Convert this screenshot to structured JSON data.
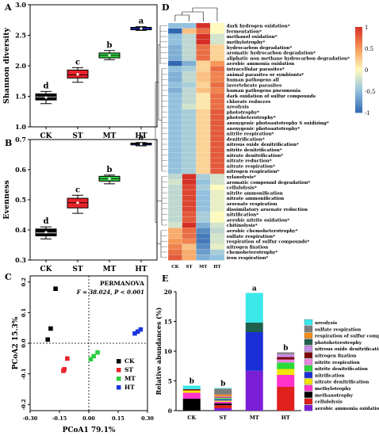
{
  "colors": {
    "box": "#000000",
    "st": "#e8232a",
    "mt": "#2ecc40",
    "ht": "#1a35e0"
  },
  "chart_data": [
    {
      "panel": "A",
      "type": "box",
      "categories": [
        "CK",
        "ST",
        "MT",
        "HT"
      ],
      "ylabel": "Shannon diversity",
      "ylim": [
        1.0,
        3.0
      ],
      "yticks": [
        "1.0",
        "1.5",
        "2.0",
        "2.5",
        "3.0"
      ],
      "boxes": [
        {
          "min": 1.38,
          "q1": 1.44,
          "median": 1.49,
          "q3": 1.54,
          "max": 1.58,
          "mean": 1.48,
          "letter": "d"
        },
        {
          "min": 1.73,
          "q1": 1.8,
          "median": 1.85,
          "q3": 1.93,
          "max": 1.97,
          "mean": 1.86,
          "letter": "c"
        },
        {
          "min": 2.1,
          "q1": 2.13,
          "median": 2.17,
          "q3": 2.21,
          "max": 2.25,
          "mean": 2.17,
          "letter": "b"
        },
        {
          "min": 2.58,
          "q1": 2.59,
          "median": 2.61,
          "q3": 2.63,
          "max": 2.64,
          "mean": 2.61,
          "letter": "a"
        }
      ]
    },
    {
      "panel": "B",
      "type": "box",
      "categories": [
        "CK",
        "ST",
        "MT",
        "HT"
      ],
      "ylabel": "Evenness",
      "ylim": [
        0.3,
        0.7
      ],
      "yticks": [
        "0.3",
        "0.4",
        "0.5",
        "0.6",
        "0.7"
      ],
      "boxes": [
        {
          "min": 0.37,
          "q1": 0.38,
          "median": 0.39,
          "q3": 0.403,
          "max": 0.41,
          "mean": 0.392,
          "letter": "d"
        },
        {
          "min": 0.455,
          "q1": 0.473,
          "median": 0.49,
          "q3": 0.505,
          "max": 0.515,
          "mean": 0.49,
          "letter": "c"
        },
        {
          "min": 0.553,
          "q1": 0.562,
          "median": 0.57,
          "q3": 0.578,
          "max": 0.582,
          "mean": 0.57,
          "letter": "b"
        },
        {
          "min": 0.679,
          "q1": 0.682,
          "median": 0.685,
          "q3": 0.688,
          "max": 0.69,
          "mean": 0.685,
          "letter": "a"
        }
      ]
    },
    {
      "panel": "C",
      "type": "scatter",
      "xlabel": "PCoA1 79.1%",
      "ylabel": "PCoA2 15.3%",
      "xlim": [
        -0.3,
        0.3
      ],
      "ylim": [
        -0.22,
        0.22
      ],
      "xticks": [
        {
          "v": -0.3,
          "l": "-0.30"
        },
        {
          "v": -0.15,
          "l": "-0.15"
        },
        {
          "v": 0.0,
          "l": "0.00"
        },
        {
          "v": 0.15,
          "l": "0.15"
        },
        {
          "v": 0.3,
          "l": "0.30"
        }
      ],
      "yticks": [
        {
          "v": 0.2,
          "l": "0.2"
        },
        {
          "v": 0.1,
          "l": "0.1"
        },
        {
          "v": 0.0,
          "l": "0.0"
        },
        {
          "v": -0.1,
          "l": "-0.1"
        },
        {
          "v": -0.2,
          "l": "-0.2"
        }
      ],
      "annotation_title": "PERMANOVA",
      "annotation_stat": "F = 38.024, P < 0.001",
      "legend": [
        "CK",
        "ST",
        "MT",
        "HT"
      ],
      "series": [
        {
          "name": "CK",
          "points": [
            [
              -0.17,
              0.178
            ],
            [
              -0.195,
              0.048
            ],
            [
              -0.21,
              0.012
            ]
          ]
        },
        {
          "name": "ST",
          "points": [
            [
              -0.11,
              -0.05
            ],
            [
              -0.125,
              -0.085
            ],
            [
              -0.13,
              -0.09
            ]
          ]
        },
        {
          "name": "MT",
          "points": [
            [
              0.045,
              -0.03
            ],
            [
              0.025,
              -0.042
            ],
            [
              0.01,
              -0.052
            ]
          ]
        },
        {
          "name": "HT",
          "points": [
            [
              0.265,
              0.045
            ],
            [
              0.25,
              0.038
            ],
            [
              0.235,
              0.032
            ]
          ]
        }
      ]
    },
    {
      "panel": "D",
      "type": "heatmap",
      "columns": [
        "CK",
        "ST",
        "MT",
        "HT"
      ],
      "scale": [
        "1",
        "0.5",
        "0",
        "-0.5",
        "-1"
      ],
      "rows": [
        {
          "name": "dark hydrogen oxidation*",
          "v": [
            -0.5,
            -0.5,
            1.0,
            0.0
          ]
        },
        {
          "name": "fermentation*",
          "v": [
            -1.0,
            0.3,
            0.7,
            0.0
          ]
        },
        {
          "name": "methanol oxidation*",
          "v": [
            -0.5,
            -0.3,
            1.0,
            -0.2
          ]
        },
        {
          "name": "methylotrophy*",
          "v": [
            -0.5,
            -0.3,
            1.0,
            -0.2
          ]
        },
        {
          "name": "hydrocarbon degradation*",
          "v": [
            -0.6,
            -0.3,
            0.7,
            0.2
          ]
        },
        {
          "name": "aromatic hydrocarbon degradation*",
          "v": [
            -0.6,
            -0.3,
            0.7,
            0.2
          ]
        },
        {
          "name": "aliphatic non methane hydrocarbon degradation*",
          "v": [
            -0.6,
            -0.3,
            0.7,
            0.2
          ]
        },
        {
          "name": "aerobic ammonia oxidation",
          "v": [
            -1.0,
            -0.6,
            0.2,
            0.5
          ]
        },
        {
          "name": "intracellular parasites*",
          "v": [
            -0.5,
            -0.4,
            0.2,
            0.7
          ]
        },
        {
          "name": "animal parasites or symbionts*",
          "v": [
            -0.6,
            -0.3,
            0.3,
            0.6
          ]
        },
        {
          "name": "human pathogens all",
          "v": [
            -0.6,
            -0.3,
            0.3,
            0.6
          ]
        },
        {
          "name": "invertebrate parasites",
          "v": [
            -0.5,
            -0.4,
            0.2,
            0.7
          ]
        },
        {
          "name": "human pathogens pneumonia",
          "v": [
            -0.6,
            -0.3,
            0.3,
            0.6
          ]
        },
        {
          "name": "dark oxidation of sulfur compounds",
          "v": [
            -0.5,
            -0.3,
            0.1,
            0.7
          ]
        },
        {
          "name": "chlorate reducers",
          "v": [
            -0.5,
            -0.3,
            0.1,
            0.7
          ]
        },
        {
          "name": "ureolysis",
          "v": [
            -0.5,
            -0.2,
            0.1,
            0.7
          ]
        },
        {
          "name": "phototrophy*",
          "v": [
            -0.5,
            -0.4,
            0.2,
            0.8
          ]
        },
        {
          "name": "photoheterotrophy*",
          "v": [
            -0.5,
            -0.4,
            0.2,
            0.8
          ]
        },
        {
          "name": "anoxygenic photoautotrophy S oxidizing*",
          "v": [
            -0.5,
            -0.4,
            0.2,
            0.8
          ]
        },
        {
          "name": "anoxygenic photoautotrophy*",
          "v": [
            -0.5,
            -0.4,
            0.2,
            0.8
          ]
        },
        {
          "name": "nitrite respiration*",
          "v": [
            -0.5,
            -0.4,
            0.2,
            0.8
          ]
        },
        {
          "name": "denitrification*",
          "v": [
            -0.5,
            -0.4,
            0.2,
            0.8
          ]
        },
        {
          "name": "nitrous oxide denitrification*",
          "v": [
            -0.5,
            -0.4,
            0.2,
            0.8
          ]
        },
        {
          "name": "nitrite denitrification*",
          "v": [
            -0.5,
            -0.4,
            0.2,
            0.8
          ]
        },
        {
          "name": "nitrate denitrification*",
          "v": [
            -0.5,
            -0.4,
            0.2,
            0.8
          ]
        },
        {
          "name": "nitrate reduction*",
          "v": [
            -0.5,
            -0.4,
            0.2,
            0.8
          ]
        },
        {
          "name": "nitrate respiration*",
          "v": [
            -0.5,
            -0.4,
            0.2,
            0.8
          ]
        },
        {
          "name": "nitrogen respiration*",
          "v": [
            -0.5,
            -0.4,
            0.2,
            0.8
          ]
        },
        {
          "name": "xylanolysis*",
          "v": [
            -0.3,
            1.0,
            -0.4,
            -0.2
          ]
        },
        {
          "name": "aromatic compound degradation*",
          "v": [
            -0.2,
            1.0,
            -0.5,
            -0.2
          ]
        },
        {
          "name": "cellulolysis*",
          "v": [
            -0.3,
            0.9,
            -0.4,
            0.0
          ]
        },
        {
          "name": "nitrite ammonification",
          "v": [
            -0.3,
            0.9,
            -0.5,
            -0.1
          ]
        },
        {
          "name": "nitrate ammonification",
          "v": [
            -0.3,
            0.9,
            -0.5,
            -0.1
          ]
        },
        {
          "name": "arsenate respiration",
          "v": [
            -0.3,
            0.9,
            -0.5,
            -0.1
          ]
        },
        {
          "name": "dissimilatory arsenate reduction",
          "v": [
            -0.3,
            0.9,
            -0.5,
            -0.1
          ]
        },
        {
          "name": "nitrification*",
          "v": [
            -0.3,
            0.8,
            -0.4,
            0.0
          ]
        },
        {
          "name": "aerobic nitrite oxidation*",
          "v": [
            -0.3,
            0.8,
            -0.4,
            0.0
          ]
        },
        {
          "name": "chitinolysis*",
          "v": [
            -0.2,
            1.0,
            -0.6,
            -0.2
          ]
        },
        {
          "name": "aerobic chemoheterotrophy*",
          "v": [
            0.4,
            0.7,
            -0.8,
            -0.3
          ]
        },
        {
          "name": "sulfate respiration*",
          "v": [
            0.4,
            0.7,
            -0.9,
            -0.2
          ]
        },
        {
          "name": "respiration of sulfur compounds*",
          "v": [
            0.5,
            0.6,
            -0.9,
            -0.2
          ]
        },
        {
          "name": "nitrogen fixation",
          "v": [
            0.6,
            0.3,
            -0.8,
            -0.1
          ]
        },
        {
          "name": "chemoheterotrophy*",
          "v": [
            0.7,
            0.4,
            -0.7,
            -0.4
          ]
        },
        {
          "name": "iron respiration*",
          "v": [
            0.8,
            0.4,
            -0.6,
            -0.5
          ]
        }
      ]
    },
    {
      "panel": "E",
      "type": "stacked-bar",
      "categories": [
        "CK",
        "ST",
        "MT",
        "HT"
      ],
      "ylabel": "Relative abundances (%)",
      "ylim": [
        0,
        20
      ],
      "yticks": [
        "0",
        "5",
        "10",
        "15",
        "20"
      ],
      "letters": [
        "b",
        "b",
        "a",
        "b"
      ],
      "legend_order_top_to_bottom": [
        "ureolysis",
        "sulfate respiration",
        "respiration of sulfur compounds",
        "photoheterotrophy",
        "nitrous oxide denitrification",
        "nitrogen fixation",
        "nitrite respiration",
        "nitrite denitrification",
        "nitrification",
        "nitrate denitrification",
        "methylotrophy",
        "methanotrophy",
        "cellulolysis",
        "aerobic ammonia oxidation"
      ],
      "series": [
        {
          "name": "aerobic ammonia oxidation",
          "color": "#7b1fd6",
          "values": [
            0.0,
            0.4,
            6.7,
            0.0
          ]
        },
        {
          "name": "cellulolysis",
          "color": "#e0201c",
          "values": [
            0.0,
            0.5,
            0.0,
            4.0
          ]
        },
        {
          "name": "methanotrophy",
          "color": "#000000",
          "values": [
            2.0,
            0.3,
            0.0,
            0.0
          ]
        },
        {
          "name": "methylotrophy",
          "color": "#ff33cc",
          "values": [
            1.0,
            0.3,
            0.0,
            2.0
          ]
        },
        {
          "name": "nitrate denitrification",
          "color": "#f2e40a",
          "values": [
            0.4,
            0.2,
            0.0,
            1.0
          ]
        },
        {
          "name": "nitrification",
          "color": "#1a2fd8",
          "values": [
            0.0,
            0.2,
            6.5,
            0.0
          ]
        },
        {
          "name": "nitrite denitrification",
          "color": "#2bd93a",
          "values": [
            0.0,
            0.2,
            0.0,
            1.1
          ]
        },
        {
          "name": "nitrite respiration",
          "color": "#ec83e2",
          "values": [
            0.0,
            0.1,
            0.0,
            0.5
          ]
        },
        {
          "name": "nitrogen fixation",
          "color": "#7a0a0a",
          "values": [
            0.2,
            0.1,
            0.0,
            0.4
          ]
        },
        {
          "name": "nitrous oxide denitrification",
          "color": "#c98de6",
          "values": [
            0.0,
            0.1,
            0.0,
            0.5
          ]
        },
        {
          "name": "photoheterotrophy",
          "color": "#1f5f4e",
          "values": [
            0.0,
            0.0,
            1.6,
            0.0
          ]
        },
        {
          "name": "respiration of sulfur compounds",
          "color": "#f58b1b",
          "values": [
            0.0,
            0.3,
            0.0,
            0.0
          ]
        },
        {
          "name": "sulfate respiration",
          "color": "#7d7d7d",
          "values": [
            0.0,
            1.0,
            0.0,
            0.3
          ]
        },
        {
          "name": "ureolysis",
          "color": "#3ae8ea",
          "values": [
            0.6,
            0.1,
            5.0,
            0.0
          ]
        }
      ]
    }
  ]
}
